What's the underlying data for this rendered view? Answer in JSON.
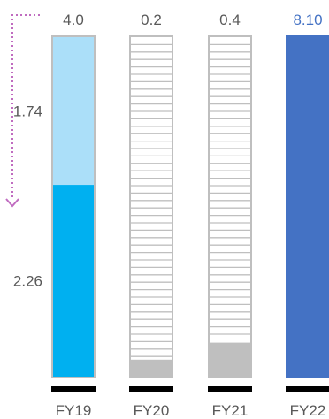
{
  "colors": {
    "fy19_lower": "#00b0f0",
    "fy19_upper": "#abdff9",
    "fy22_bar": "#4472c4",
    "fy22_label": "#4472c4",
    "fill_gray": "#bfbfbf",
    "outline": "#bfbfbf",
    "label_text": "#595959",
    "base_line": "#000000",
    "arrow": "#c06cc0"
  },
  "chart_data": {
    "type": "bar",
    "categories": [
      "FY19",
      "FY20",
      "FY21",
      "FY22"
    ],
    "capacity": 4.0,
    "top_labels": [
      "4.0",
      "0.2",
      "0.4",
      "8.10"
    ],
    "bars": [
      {
        "category": "FY19",
        "style": "stacked",
        "segments": [
          {
            "value": 2.26,
            "label": "2.26",
            "color": "#00b0f0"
          },
          {
            "value": 1.74,
            "label": "1.74",
            "color": "#abdff9"
          }
        ]
      },
      {
        "category": "FY20",
        "style": "fill",
        "value": 0.2,
        "color": "#bfbfbf"
      },
      {
        "category": "FY21",
        "style": "fill",
        "value": 0.4,
        "color": "#bfbfbf"
      },
      {
        "category": "FY22",
        "style": "full",
        "value": 8.1,
        "color": "#4472c4"
      }
    ],
    "annotation": "dotted arrow from top-left pointing down to the top of the FY19 light segment",
    "grid": false,
    "legend": "none"
  }
}
